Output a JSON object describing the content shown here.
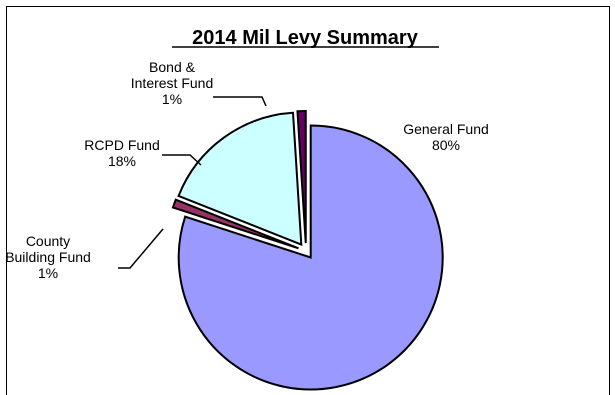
{
  "chart_data": {
    "type": "pie",
    "title": "2014 Mil Levy Summary",
    "slices": [
      {
        "label_lines": [
          "General Fund"
        ],
        "pct_label": "80%",
        "value": 80,
        "color": "#9999ff"
      },
      {
        "label_lines": [
          "County",
          "Building Fund"
        ],
        "pct_label": "1%",
        "value": 1,
        "color": "#993366"
      },
      {
        "label_lines": [
          "RCPD Fund"
        ],
        "pct_label": "18%",
        "value": 18,
        "color": "#ccffff"
      },
      {
        "label_lines": [
          "Bond &",
          "Interest Fund"
        ],
        "pct_label": "1%",
        "value": 1,
        "color": "#660066"
      }
    ],
    "legend": "none"
  }
}
